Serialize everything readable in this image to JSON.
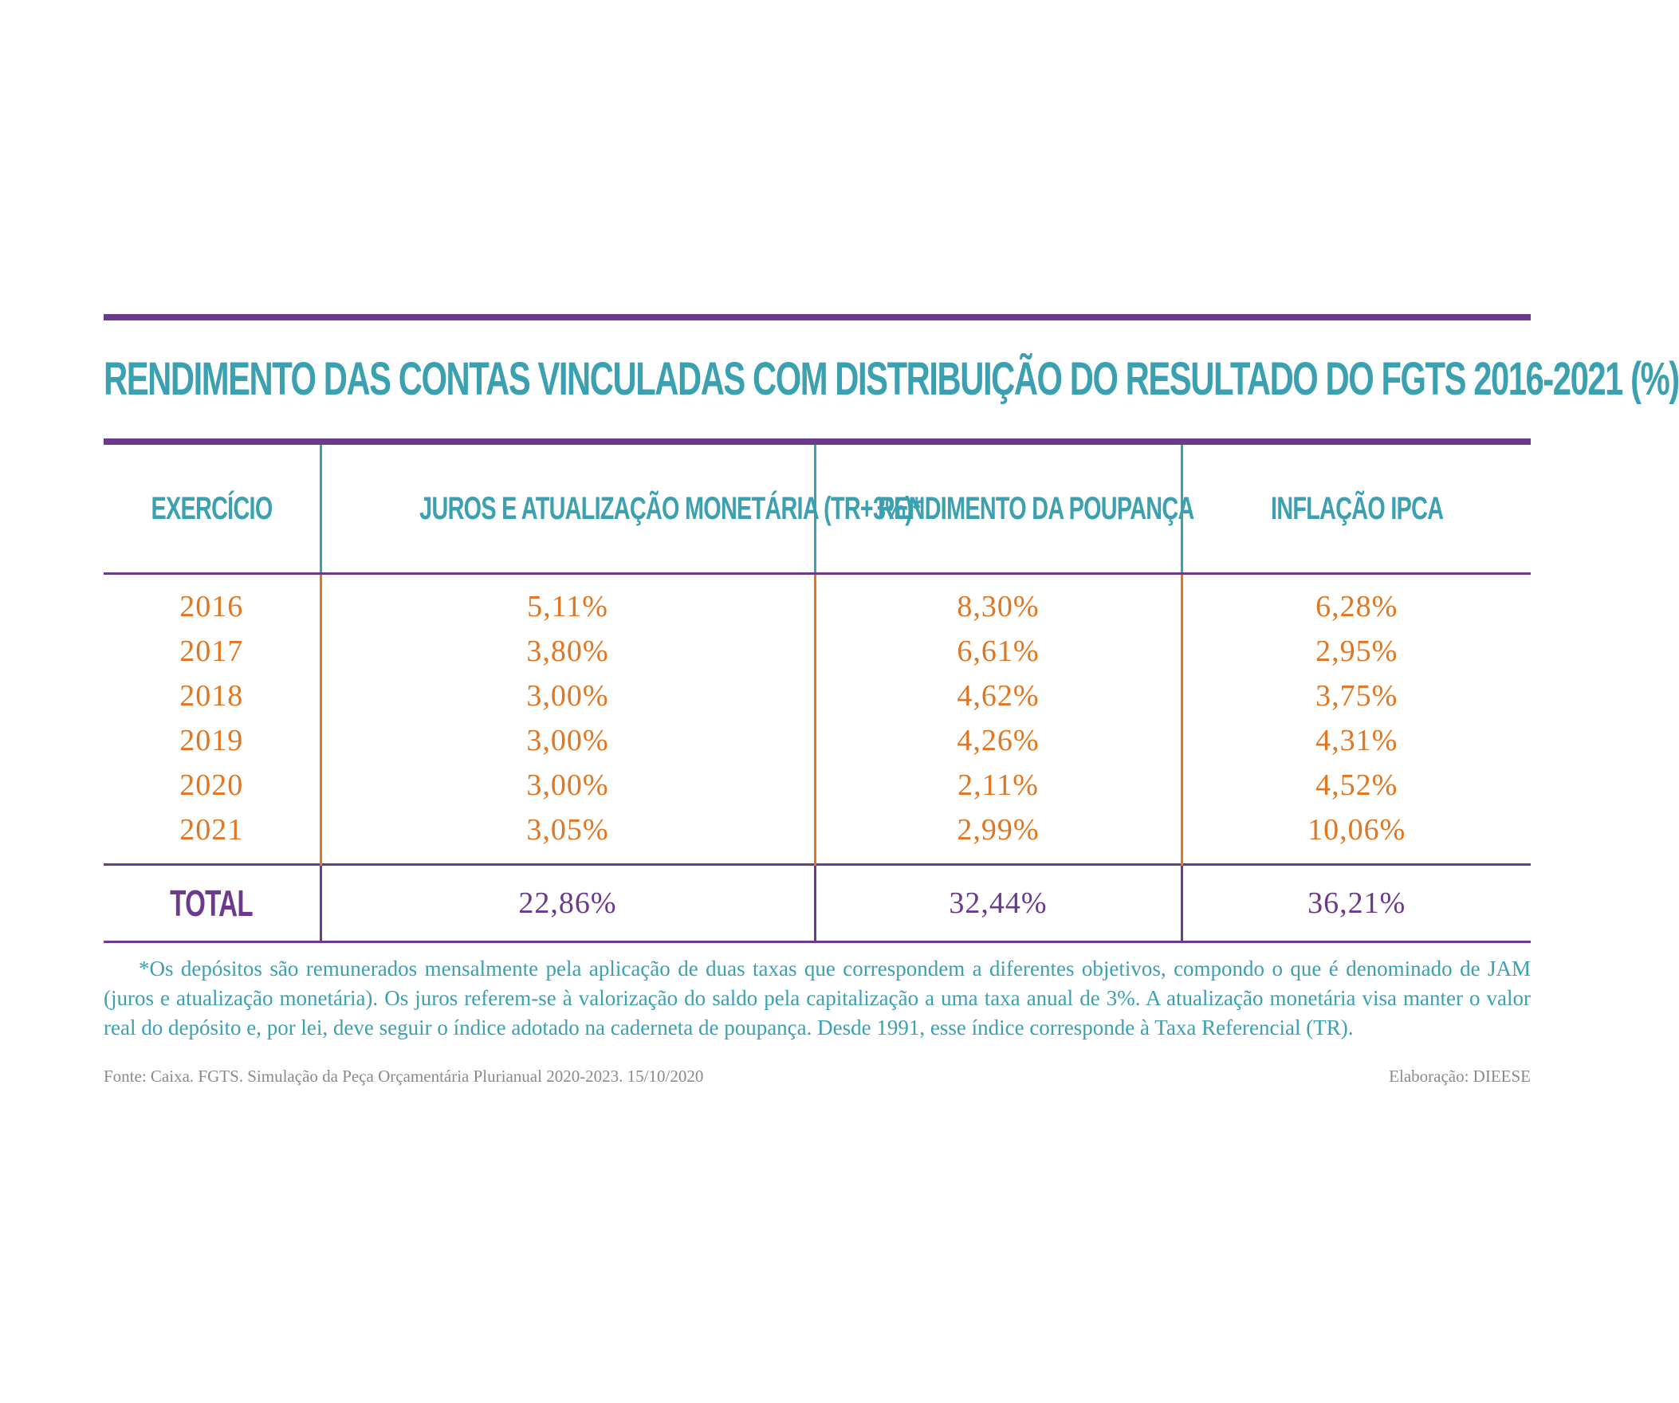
{
  "chart_data": {
    "type": "table",
    "title": "RENDIMENTO DAS CONTAS VINCULADAS COM DISTRIBUIÇÃO DO RESULTADO DO FGTS 2016-2021 (%)",
    "columns": [
      "EXERCÍCIO",
      "JUROS E ATUALIZAÇÃO MONETÁRIA (TR+3%)*",
      "RENDIMENTO DA POUPANÇA",
      "INFLAÇÃO IPCA"
    ],
    "rows": [
      [
        "2016",
        "5,11%",
        "8,30%",
        "6,28%"
      ],
      [
        "2017",
        "3,80%",
        "6,61%",
        "2,95%"
      ],
      [
        "2018",
        "3,00%",
        "4,62%",
        "3,75%"
      ],
      [
        "2019",
        "3,00%",
        "4,26%",
        "4,31%"
      ],
      [
        "2020",
        "3,00%",
        "2,11%",
        "4,52%"
      ],
      [
        "2021",
        "3,05%",
        "2,99%",
        "10,06%"
      ]
    ],
    "total": [
      "TOTAL",
      "22,86%",
      "32,44%",
      "36,21%"
    ],
    "series": [
      {
        "name": "JUROS E ATUALIZAÇÃO MONETÁRIA (TR+3%)*",
        "values": [
          5.11,
          3.8,
          3.0,
          3.0,
          3.0,
          3.05
        ],
        "total": 22.86
      },
      {
        "name": "RENDIMENTO DA POUPANÇA",
        "values": [
          8.3,
          6.61,
          4.62,
          4.26,
          2.11,
          2.99
        ],
        "total": 32.44
      },
      {
        "name": "INFLAÇÃO IPCA",
        "values": [
          6.28,
          2.95,
          3.75,
          4.31,
          4.52,
          10.06
        ],
        "total": 36.21
      }
    ],
    "categories": [
      "2016",
      "2017",
      "2018",
      "2019",
      "2020",
      "2021"
    ]
  },
  "footnote": "*Os depósitos são remunerados mensalmente pela aplicação de duas taxas que correspondem a diferentes objetivos, compondo o que é denominado de JAM (juros e atualização monetária). Os juros referem-se à valorização do saldo pela capitalização a uma taxa anual de 3%. A atualização monetária visa manter o valor real do depósito e, por lei, deve seguir o índice adotado na caderneta de poupança. Desde 1991, esse índice corresponde à Taxa Referencial (TR).",
  "source": "Fonte: Caixa. FGTS. Simulação da Peça Orçamentária Plurianual 2020-2023. 15/10/2020",
  "credit": "Elaboração: DIEESE",
  "colors": {
    "purple": "#6b3a8e",
    "teal": "#3ba0b0",
    "orange": "#e2751f",
    "gray": "#8a8a8a"
  }
}
